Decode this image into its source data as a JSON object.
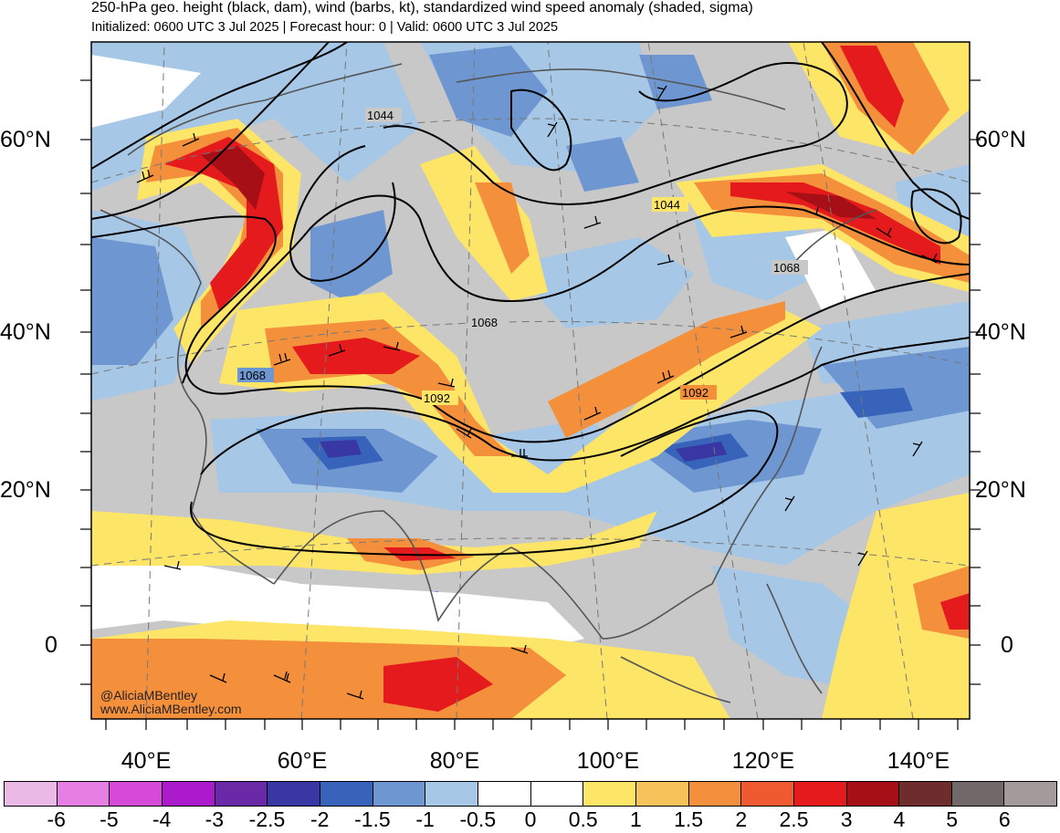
{
  "header": {
    "title": "250-hPa geo. height (black, dam), wind (barbs, kt), standardized wind speed anomaly (shaded, sigma)",
    "subtitle": "Initialized: 0600 UTC 3 Jul 2025 | Forecast hour: 0 | Valid: 0600 UTC 3 Jul 2025"
  },
  "map": {
    "projection": "polar stereographic",
    "lat_labels_left": [
      "60°N",
      "40°N",
      "20°N",
      "0"
    ],
    "lat_labels_right": [
      "60°N",
      "40°N",
      "20°N",
      "0"
    ],
    "lon_labels": [
      "40°E",
      "60°E",
      "80°E",
      "100°E",
      "120°E",
      "140°E"
    ],
    "contour_labels": [
      "1044",
      "1044",
      "1068",
      "1068",
      "1068",
      "1092",
      "1092"
    ],
    "colors": {
      "neutral_gray": "#c8c8c8",
      "ocean_white": "#ffffff",
      "coast": "#555555"
    }
  },
  "credits": {
    "handle": "@AliciaMBentley",
    "website": "www.AliciaMBentley.com"
  },
  "colorbar": {
    "labels": [
      "-6",
      "-5",
      "-4",
      "-3",
      "-2.5",
      "-2",
      "-1.5",
      "-1",
      "-0.5",
      "0",
      "0.5",
      "1",
      "1.5",
      "2",
      "2.5",
      "3",
      "4",
      "5",
      "6"
    ],
    "colors": [
      "#ebb9e6",
      "#e57fe4",
      "#d649d9",
      "#ab1bcc",
      "#6a2aa8",
      "#3937a3",
      "#3763ba",
      "#6e97d1",
      "#a6c7e6",
      "#ffffff",
      "#ffffff",
      "#fde567",
      "#f7c25a",
      "#f48f3c",
      "#ef5a30",
      "#e41a1c",
      "#a50f15",
      "#6e2c2c",
      "#716969",
      "#a39b9b"
    ]
  }
}
